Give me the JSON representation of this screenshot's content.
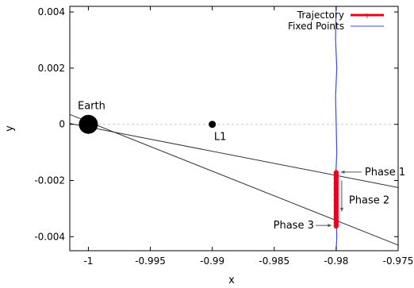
{
  "chart_data": {
    "type": "scatter",
    "xlabel": "x",
    "ylabel": "y",
    "xlim": [
      -1.0015,
      -0.975
    ],
    "ylim": [
      -0.0045,
      0.0042
    ],
    "x_ticks": [
      -1,
      -0.995,
      -0.99,
      -0.985,
      -0.98,
      -0.975
    ],
    "x_tick_labels": [
      "-1",
      "-0.995",
      "-0.99",
      "-0.985",
      "-0.98",
      "-0.975"
    ],
    "y_ticks": [
      0.004,
      0.002,
      0,
      -0.002,
      -0.004
    ],
    "y_tick_labels": [
      "0.004",
      "0.002",
      "0",
      "-0.002",
      "-0.004"
    ],
    "grid": false,
    "zero_line": {
      "y": 0,
      "style": "dashed"
    },
    "legend": {
      "position": "top-right",
      "entries": [
        {
          "name": "Trajectory",
          "color": "#e8001c"
        },
        {
          "name": "Fixed Points",
          "color": "#3c4bd6"
        }
      ]
    },
    "bodies": [
      {
        "name": "Earth",
        "x": -1.0,
        "y": 0.0,
        "size": "large"
      },
      {
        "name": "L1",
        "x": -0.99,
        "y": 0.0,
        "size": "small"
      }
    ],
    "lines": [
      {
        "name": "line-upper",
        "points": [
          [
            -1.0015,
            3e-05
          ],
          [
            -0.975,
            -0.00225
          ]
        ]
      },
      {
        "name": "line-lower",
        "points": [
          [
            -1.0015,
            0.00035
          ],
          [
            -0.975,
            -0.0043
          ]
        ]
      }
    ],
    "series": [
      {
        "name": "Trajectory",
        "color": "#e8001c",
        "points": [
          [
            -0.98,
            -0.00172
          ],
          [
            -0.98,
            -0.0019
          ],
          [
            -0.98,
            -0.0021
          ],
          [
            -0.98,
            -0.0023
          ],
          [
            -0.98,
            -0.0025
          ],
          [
            -0.98,
            -0.0027
          ],
          [
            -0.98,
            -0.0029
          ],
          [
            -0.98,
            -0.0031
          ],
          [
            -0.98,
            -0.0033
          ],
          [
            -0.98,
            -0.0035
          ],
          [
            -0.98,
            -0.00362
          ]
        ]
      },
      {
        "name": "Fixed Points",
        "color": "#3c4bd6",
        "points": [
          [
            -0.98,
            0.0042
          ],
          [
            -0.98005,
            0.003
          ],
          [
            -0.97995,
            0.002
          ],
          [
            -0.98005,
            0.001
          ],
          [
            -0.98,
            0.0
          ],
          [
            -0.97995,
            -0.001
          ],
          [
            -0.98005,
            -0.002
          ],
          [
            -0.98,
            -0.003
          ],
          [
            -0.97995,
            -0.004
          ],
          [
            -0.98,
            -0.0045
          ]
        ]
      }
    ],
    "annotations": [
      {
        "text": "Earth",
        "anchor": "Earth"
      },
      {
        "text": "L1",
        "anchor": "L1"
      },
      {
        "text": "Phase 1",
        "target": [
          -0.98,
          -0.0017
        ]
      },
      {
        "text": "Phase 2",
        "target": [
          -0.97955,
          -0.0026
        ]
      },
      {
        "text": "Phase 3",
        "target": [
          -0.98,
          -0.0036
        ]
      }
    ],
    "colors": {
      "trajectory": "#e8001c",
      "fixed_points": "#3c4bd6",
      "axes": "#000000",
      "zero_line": "#c8c8c8"
    }
  }
}
